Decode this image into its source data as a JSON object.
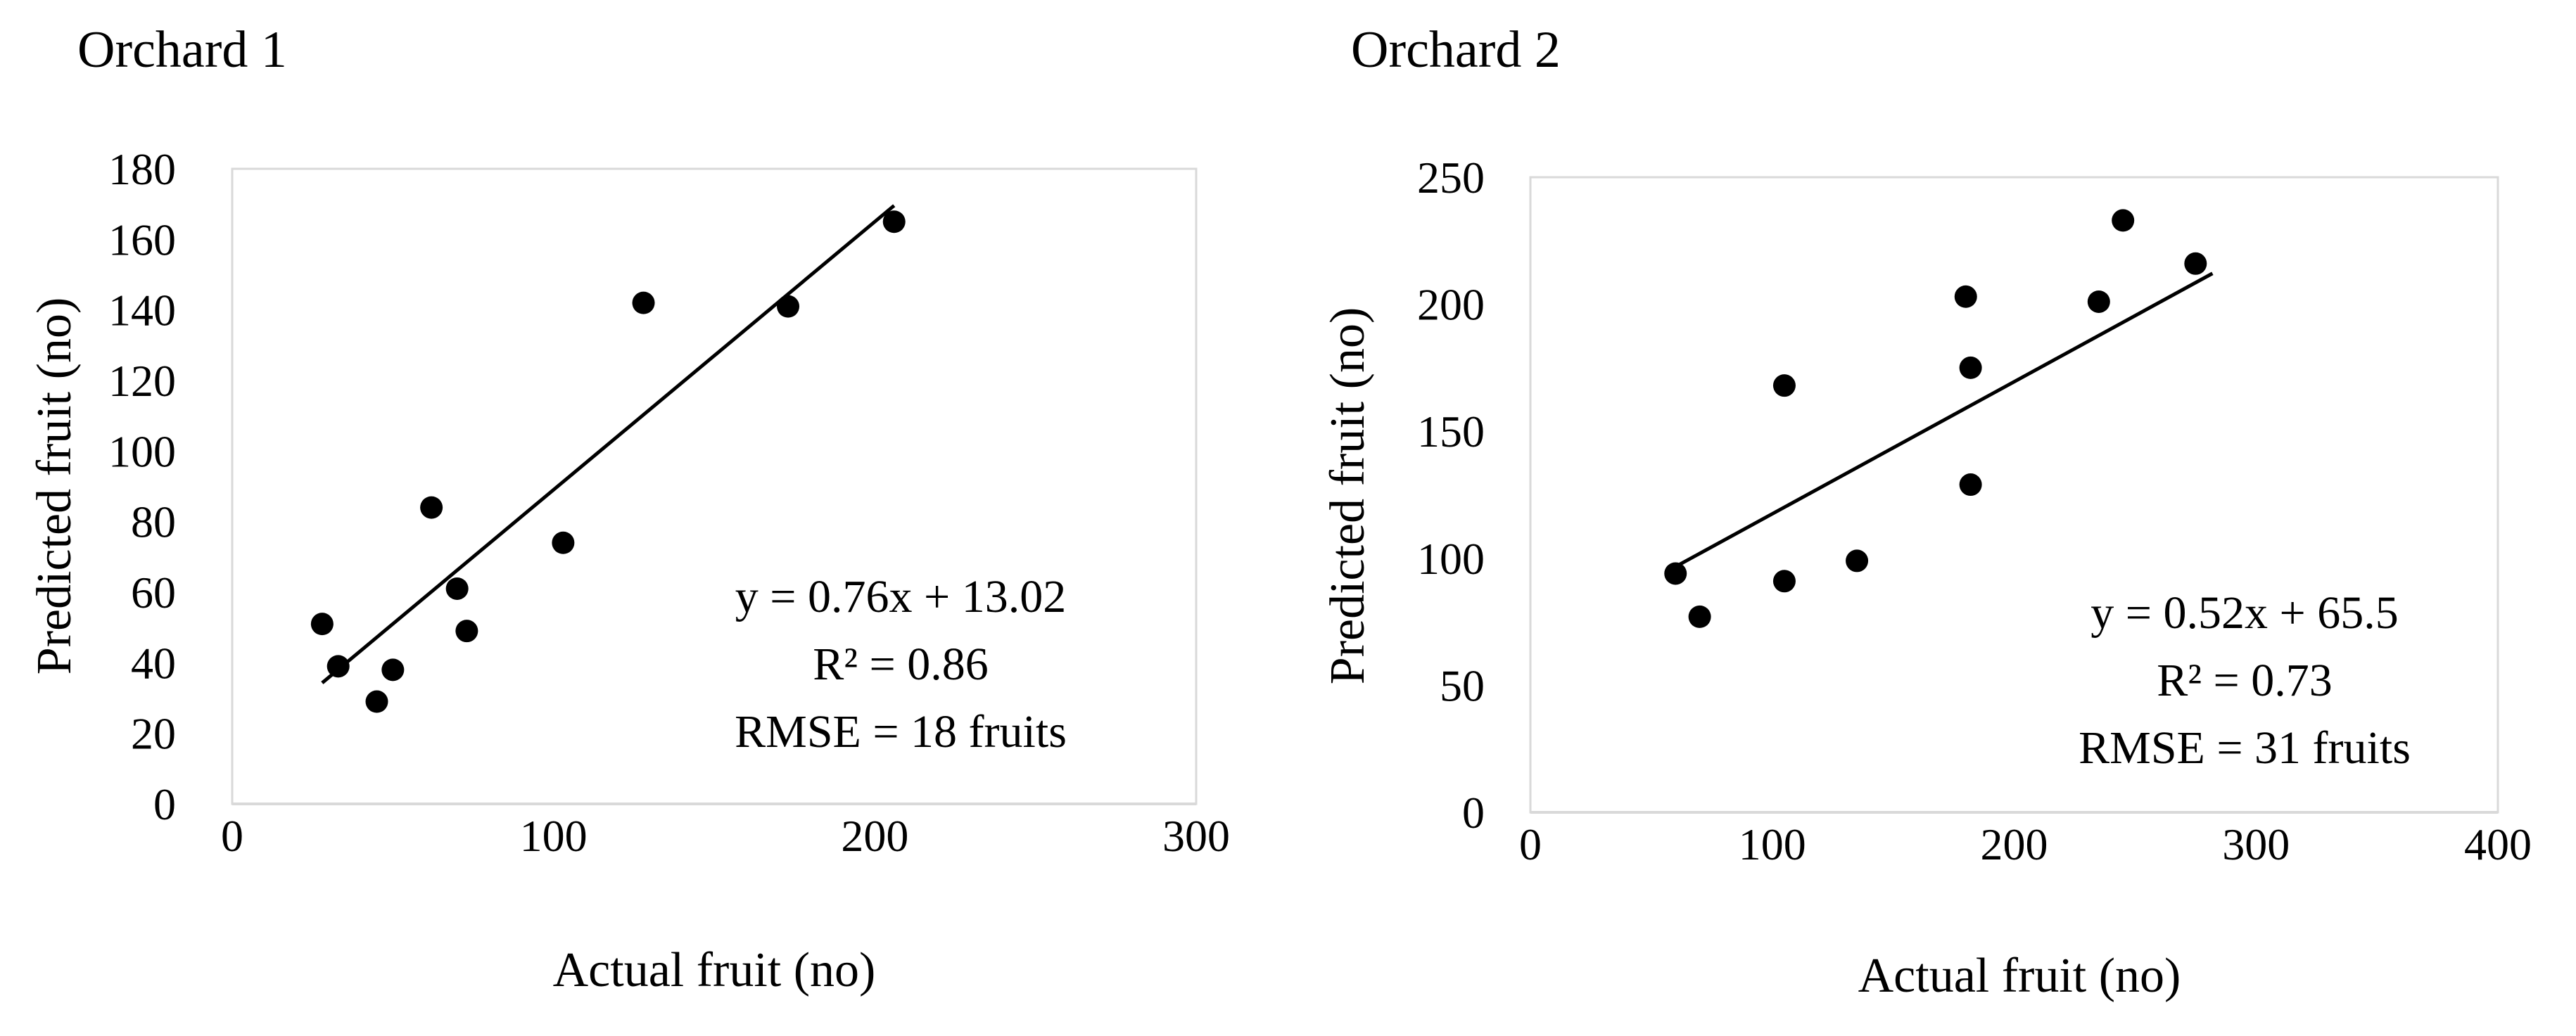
{
  "chart_data": [
    {
      "type": "scatter",
      "title": "Orchard 1",
      "xlabel": "Actual fruit (no)",
      "ylabel": "Predicted fruit (no)",
      "xlim": [
        0,
        300
      ],
      "ylim": [
        0,
        180
      ],
      "xticks": [
        0,
        100,
        200,
        300
      ],
      "yticks": [
        0,
        20,
        40,
        60,
        80,
        100,
        120,
        140,
        160,
        180
      ],
      "grid": false,
      "series": [
        {
          "x": [
            28,
            33,
            45,
            50,
            62,
            70,
            73,
            103,
            128,
            173,
            206
          ],
          "y": [
            51,
            39,
            29,
            38,
            84,
            61,
            49,
            74,
            142,
            141,
            165
          ]
        }
      ],
      "trendline": {
        "slope": 0.76,
        "intercept": 13.02,
        "x_range": [
          28,
          206
        ]
      },
      "annotations": [
        "y = 0.76x + 13.02",
        "R² = 0.86",
        "RMSE = 18 fruits"
      ]
    },
    {
      "type": "scatter",
      "title": "Orchard 2",
      "xlabel": "Actual fruit (no)",
      "ylabel": "Predicted fruit (no)",
      "xlim": [
        0,
        400
      ],
      "ylim": [
        0,
        250
      ],
      "xticks": [
        0,
        100,
        200,
        300,
        400
      ],
      "yticks": [
        0,
        50,
        100,
        150,
        200,
        250
      ],
      "grid": false,
      "series": [
        {
          "x": [
            60,
            70,
            105,
            105,
            135,
            180,
            182,
            182,
            235,
            245,
            275
          ],
          "y": [
            94,
            77,
            91,
            168,
            99,
            203,
            175,
            129,
            201,
            233,
            216
          ]
        }
      ],
      "trendline": {
        "slope": 0.52,
        "intercept": 65.5,
        "x_range": [
          60,
          282
        ]
      },
      "annotations": [
        "y = 0.52x + 65.5",
        "R² = 0.73",
        "RMSE = 31 fruits"
      ]
    }
  ]
}
